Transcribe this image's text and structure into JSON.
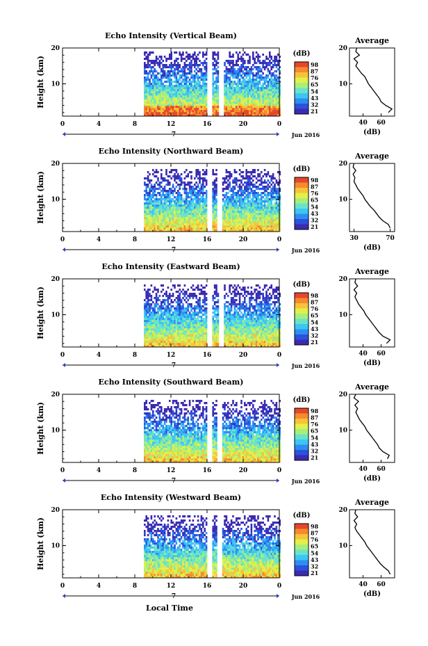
{
  "figure": {
    "xaxis_label": "Local Time",
    "date_label": "Jun 2016",
    "date_marker": "7"
  },
  "colorbar": {
    "unit": "(dB)",
    "colors": [
      "#3b2bb0",
      "#2b52dc",
      "#2e8ef0",
      "#3cc6f5",
      "#6ae3c8",
      "#a8ef7a",
      "#e3f04a",
      "#f8c23a",
      "#f58a2e",
      "#e5472a"
    ]
  },
  "chart_data": [
    {
      "type": "heatmap",
      "title": "Echo Intensity (Vertical Beam)",
      "ylabel": "Height (km)",
      "xlim": [
        0,
        24
      ],
      "ylim": [
        1,
        20
      ],
      "xticks": [
        "0",
        "4",
        "8",
        "12",
        "16",
        "20",
        "0"
      ],
      "yticks": [
        "20",
        "10"
      ],
      "data_start_hour": 9,
      "data_end_hour": 24,
      "top_height_km": 19.5,
      "gaps_hours": [
        [
          16.0,
          16.5
        ],
        [
          17.2,
          17.8
        ]
      ],
      "colorbar_ticks": [
        "98",
        "87",
        "76",
        "65",
        "54",
        "43",
        "32",
        "21"
      ],
      "average": {
        "title": "Average",
        "xlabel": "(dB)",
        "xticks": [
          "40",
          "60"
        ],
        "xlim": [
          25,
          75
        ],
        "profile_km": [
          2,
          3,
          4,
          5,
          6,
          7,
          8,
          9,
          10,
          11,
          12,
          13,
          14,
          15,
          16,
          17,
          18,
          19,
          20
        ],
        "profile_db": [
          68,
          72,
          65,
          60,
          58,
          55,
          52,
          49,
          46,
          44,
          42,
          38,
          35,
          32,
          34,
          30,
          36,
          32,
          33
        ]
      }
    },
    {
      "type": "heatmap",
      "title": "Echo Intensity (Northward Beam)",
      "ylabel": "Height (km)",
      "xlim": [
        0,
        24
      ],
      "ylim": [
        1,
        20
      ],
      "xticks": [
        "0",
        "4",
        "8",
        "12",
        "16",
        "20",
        "0"
      ],
      "yticks": [
        "20",
        "10"
      ],
      "data_start_hour": 9,
      "data_end_hour": 24,
      "top_height_km": 18.5,
      "gaps_hours": [
        [
          16.0,
          16.5
        ],
        [
          17.0,
          17.6
        ]
      ],
      "colorbar_ticks": [
        "98",
        "87",
        "76",
        "65",
        "54",
        "43",
        "32",
        "21"
      ],
      "average": {
        "title": "Average",
        "xlabel": "(dB)",
        "xticks": [
          "30",
          "70"
        ],
        "xlim": [
          25,
          75
        ],
        "profile_km": [
          2,
          3,
          4,
          5,
          6,
          7,
          8,
          9,
          10,
          11,
          12,
          13,
          14,
          15,
          16,
          17,
          18,
          19,
          20
        ],
        "profile_db": [
          70,
          68,
          62,
          58,
          55,
          52,
          48,
          45,
          42,
          40,
          37,
          34,
          32,
          30,
          31,
          29,
          32,
          29,
          30
        ]
      }
    },
    {
      "type": "heatmap",
      "title": "Echo Intensity (Eastward Beam)",
      "ylabel": "Height (km)",
      "xlim": [
        0,
        24
      ],
      "ylim": [
        1,
        20
      ],
      "xticks": [
        "0",
        "4",
        "8",
        "12",
        "16",
        "20",
        "0"
      ],
      "yticks": [
        "20",
        "10"
      ],
      "data_start_hour": 9,
      "data_end_hour": 24,
      "top_height_km": 18.5,
      "gaps_hours": [
        [
          16.0,
          16.5
        ],
        [
          17.3,
          17.8
        ]
      ],
      "colorbar_ticks": [
        "98",
        "87",
        "76",
        "65",
        "54",
        "43",
        "32",
        "21"
      ],
      "average": {
        "title": "Average",
        "xlabel": "(dB)",
        "xticks": [
          "40",
          "60"
        ],
        "xlim": [
          25,
          75
        ],
        "profile_km": [
          2,
          3,
          4,
          5,
          6,
          7,
          8,
          9,
          10,
          11,
          12,
          13,
          14,
          15,
          16,
          17,
          18,
          19,
          20
        ],
        "profile_db": [
          66,
          70,
          62,
          58,
          55,
          52,
          49,
          46,
          43,
          41,
          38,
          35,
          33,
          31,
          33,
          30,
          34,
          31,
          32
        ]
      }
    },
    {
      "type": "heatmap",
      "title": "Echo Intensity (Southward Beam)",
      "ylabel": "Height (km)",
      "xlim": [
        0,
        24
      ],
      "ylim": [
        1,
        20
      ],
      "xticks": [
        "0",
        "4",
        "8",
        "12",
        "16",
        "20",
        "0"
      ],
      "yticks": [
        "20",
        "10"
      ],
      "data_start_hour": 9,
      "data_end_hour": 24,
      "top_height_km": 18.5,
      "gaps_hours": [
        [
          16.0,
          16.5
        ],
        [
          17.0,
          17.6
        ]
      ],
      "colorbar_ticks": [
        "98",
        "87",
        "76",
        "65",
        "54",
        "43",
        "32",
        "21"
      ],
      "average": {
        "title": "Average",
        "xlabel": "(dB)",
        "xticks": [
          "40",
          "60"
        ],
        "xlim": [
          25,
          75
        ],
        "profile_km": [
          2,
          3,
          4,
          5,
          6,
          7,
          8,
          9,
          10,
          11,
          12,
          13,
          14,
          15,
          16,
          17,
          18,
          19,
          20
        ],
        "profile_db": [
          67,
          69,
          62,
          58,
          56,
          53,
          50,
          47,
          44,
          42,
          39,
          36,
          34,
          32,
          34,
          31,
          35,
          30,
          32
        ]
      }
    },
    {
      "type": "heatmap",
      "title": "Echo Intensity (Westward Beam)",
      "ylabel": "Height (km)",
      "xlim": [
        0,
        24
      ],
      "ylim": [
        1,
        20
      ],
      "xticks": [
        "0",
        "4",
        "8",
        "12",
        "16",
        "20",
        "0"
      ],
      "yticks": [
        "20",
        "10"
      ],
      "data_start_hour": 9,
      "data_end_hour": 24,
      "top_height_km": 18.5,
      "gaps_hours": [
        [
          16.0,
          16.5
        ],
        [
          17.1,
          17.6
        ]
      ],
      "colorbar_ticks": [
        "98",
        "87",
        "76",
        "65",
        "54",
        "43",
        "32",
        "21"
      ],
      "average": {
        "title": "Average",
        "xlabel": "(dB)",
        "xticks": [
          "40",
          "60"
        ],
        "xlim": [
          25,
          75
        ],
        "profile_km": [
          2,
          3,
          4,
          5,
          6,
          7,
          8,
          9,
          10,
          11,
          12,
          13,
          14,
          15,
          16,
          17,
          18,
          19,
          20
        ],
        "profile_db": [
          70,
          68,
          63,
          59,
          56,
          53,
          50,
          47,
          44,
          42,
          39,
          36,
          33,
          31,
          33,
          30,
          34,
          31,
          32
        ]
      }
    }
  ]
}
